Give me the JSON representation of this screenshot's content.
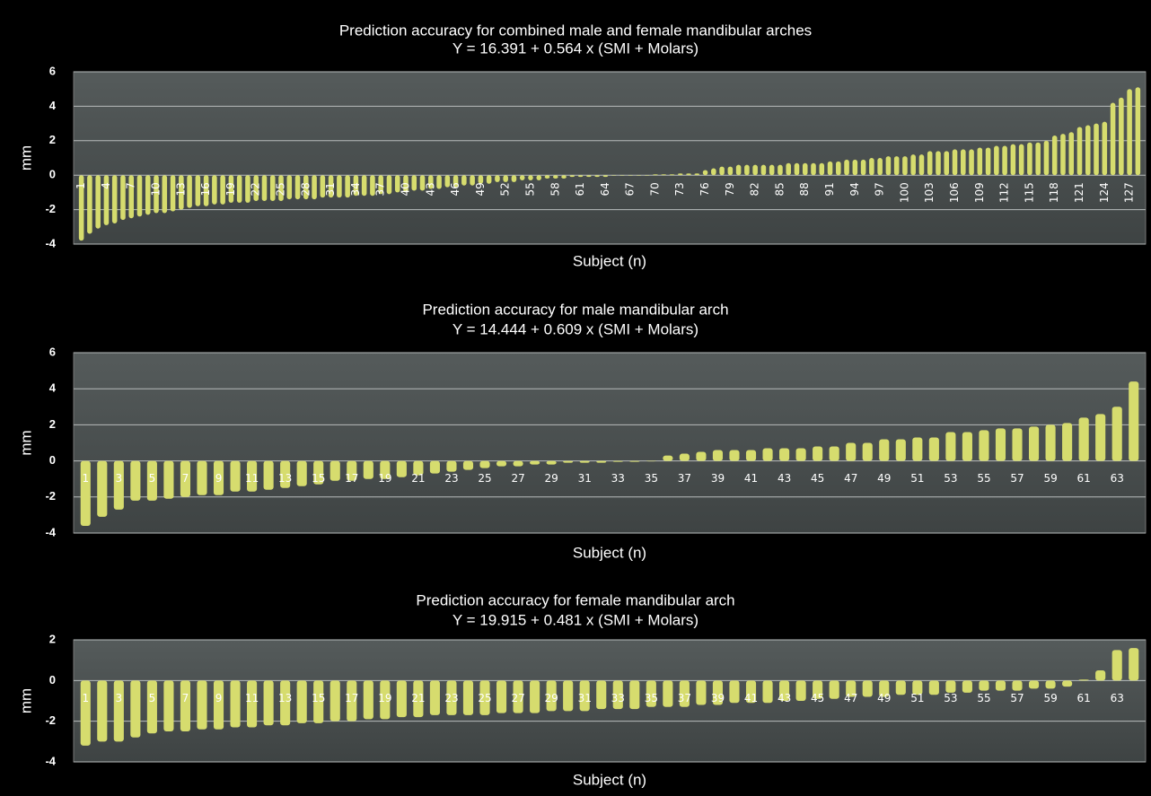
{
  "chart_data": [
    {
      "type": "bar",
      "title": "Prediction accuracy for combined male and female mandibular arches",
      "subtitle": "Y = 16.391 + 0.564 x (SMI + Molars)",
      "x_label": "Subject (n)",
      "y_label": "mm",
      "label_rotation": "vertical",
      "categories": [
        "1",
        null,
        null,
        "4",
        null,
        null,
        "7",
        null,
        null,
        "10",
        null,
        null,
        "13",
        null,
        null,
        "16",
        null,
        null,
        "19",
        null,
        null,
        "22",
        null,
        null,
        "25",
        null,
        null,
        "28",
        null,
        null,
        "31",
        null,
        null,
        "34",
        null,
        null,
        "37",
        null,
        null,
        "40",
        null,
        null,
        "43",
        null,
        null,
        "46",
        null,
        null,
        "49",
        null,
        null,
        "52",
        null,
        null,
        "55",
        null,
        null,
        "58",
        null,
        null,
        "61",
        null,
        null,
        "64",
        null,
        null,
        "67",
        null,
        null,
        "70",
        null,
        null,
        "73",
        null,
        null,
        "76",
        null,
        null,
        "79",
        null,
        null,
        "82",
        null,
        null,
        "85",
        null,
        null,
        "88",
        null,
        null,
        "91",
        null,
        null,
        "94",
        null,
        null,
        "97",
        null,
        null,
        "100",
        null,
        null,
        "103",
        null,
        null,
        "106",
        null,
        null,
        "109",
        null,
        null,
        "112",
        null,
        null,
        "115",
        null,
        null,
        "118",
        null,
        null,
        "121",
        null,
        null,
        "124",
        null,
        null,
        "127",
        null
      ],
      "values": [
        -3.8,
        -3.4,
        -3.1,
        -2.9,
        -2.8,
        -2.6,
        -2.5,
        -2.4,
        -2.3,
        -2.2,
        -2.2,
        -2.1,
        -2.0,
        -1.9,
        -1.8,
        -1.8,
        -1.7,
        -1.7,
        -1.6,
        -1.6,
        -1.6,
        -1.5,
        -1.5,
        -1.5,
        -1.5,
        -1.4,
        -1.4,
        -1.4,
        -1.4,
        -1.3,
        -1.3,
        -1.3,
        -1.3,
        -1.2,
        -1.2,
        -1.2,
        -1.1,
        -1.1,
        -1.0,
        -1.0,
        -0.9,
        -0.9,
        -0.8,
        -0.8,
        -0.7,
        -0.7,
        -0.6,
        -0.6,
        -0.5,
        -0.5,
        -0.4,
        -0.4,
        -0.4,
        -0.3,
        -0.3,
        -0.3,
        -0.2,
        -0.2,
        -0.2,
        -0.1,
        -0.1,
        -0.1,
        -0.1,
        -0.1,
        0,
        0,
        0,
        0,
        0,
        0.05,
        0.05,
        0.05,
        0.1,
        0.1,
        0.1,
        0.3,
        0.4,
        0.5,
        0.5,
        0.6,
        0.6,
        0.6,
        0.6,
        0.6,
        0.6,
        0.7,
        0.7,
        0.7,
        0.7,
        0.7,
        0.8,
        0.8,
        0.9,
        0.9,
        0.9,
        1.0,
        1.0,
        1.1,
        1.1,
        1.1,
        1.2,
        1.2,
        1.4,
        1.4,
        1.4,
        1.5,
        1.5,
        1.5,
        1.6,
        1.6,
        1.7,
        1.7,
        1.8,
        1.8,
        1.9,
        1.9,
        2.0,
        2.3,
        2.4,
        2.5,
        2.8,
        2.9,
        3.0,
        3.1,
        4.2,
        4.5,
        5.0,
        5.1
      ],
      "color": "#d6dc6e",
      "ylim": [
        -4,
        6
      ],
      "yticks": [
        -4,
        -2,
        0,
        2,
        4,
        6
      ],
      "grid": true
    },
    {
      "type": "bar",
      "title": "Prediction accuracy for male mandibular arch",
      "subtitle": "Y = 14.444 + 0.609 x (SMI + Molars)",
      "x_label": "Subject (n)",
      "y_label": "mm",
      "label_rotation": "horizontal",
      "categories": [
        "1",
        null,
        "3",
        null,
        "5",
        null,
        "7",
        null,
        "9",
        null,
        "11",
        null,
        "13",
        null,
        "15",
        null,
        "17",
        null,
        "19",
        null,
        "21",
        null,
        "23",
        null,
        "25",
        null,
        "27",
        null,
        "29",
        null,
        "31",
        null,
        "33",
        null,
        "35",
        null,
        "37",
        null,
        "39",
        null,
        "41",
        null,
        "43",
        null,
        "45",
        null,
        "47",
        null,
        "49",
        null,
        "51",
        null,
        "53",
        null,
        "55",
        null,
        "57",
        null,
        "59",
        null,
        "61",
        null,
        "63",
        null
      ],
      "values": [
        -3.6,
        -3.1,
        -2.7,
        -2.2,
        -2.2,
        -2.1,
        -2.0,
        -1.9,
        -1.9,
        -1.7,
        -1.7,
        -1.6,
        -1.5,
        -1.4,
        -1.3,
        -1.1,
        -1.1,
        -1.0,
        -1.0,
        -0.9,
        -0.8,
        -0.7,
        -0.6,
        -0.5,
        -0.4,
        -0.3,
        -0.3,
        -0.2,
        -0.2,
        -0.1,
        -0.1,
        -0.1,
        -0.05,
        -0.05,
        0,
        0.3,
        0.4,
        0.5,
        0.6,
        0.6,
        0.6,
        0.7,
        0.7,
        0.7,
        0.8,
        0.8,
        1.0,
        1.0,
        1.2,
        1.2,
        1.3,
        1.3,
        1.6,
        1.6,
        1.7,
        1.8,
        1.8,
        1.9,
        2.0,
        2.1,
        2.4,
        2.6,
        3.0,
        4.4
      ],
      "color": "#d6dc6e",
      "ylim": [
        -4,
        6
      ],
      "yticks": [
        -4,
        -2,
        0,
        2,
        4,
        6
      ],
      "grid": true
    },
    {
      "type": "bar",
      "title": "Prediction accuracy for female mandibular arch",
      "subtitle": "Y = 19.915 + 0.481 x (SMI + Molars)",
      "x_label": "Subject (n)",
      "y_label": "mm",
      "label_rotation": "horizontal",
      "categories": [
        "1",
        null,
        "3",
        null,
        "5",
        null,
        "7",
        null,
        "9",
        null,
        "11",
        null,
        "13",
        null,
        "15",
        null,
        "17",
        null,
        "19",
        null,
        "21",
        null,
        "23",
        null,
        "25",
        null,
        "27",
        null,
        "29",
        null,
        "31",
        null,
        "33",
        null,
        "35",
        null,
        "37",
        null,
        "39",
        null,
        "41",
        null,
        "43",
        null,
        "45",
        null,
        "47",
        null,
        "49",
        null,
        "51",
        null,
        "53",
        null,
        "55",
        null,
        "57",
        null,
        "59",
        null,
        "61",
        null,
        "63",
        null
      ],
      "values": [
        -3.2,
        -3.0,
        -3.0,
        -2.8,
        -2.6,
        -2.5,
        -2.5,
        -2.4,
        -2.4,
        -2.3,
        -2.3,
        -2.2,
        -2.2,
        -2.1,
        -2.1,
        -2.0,
        -2.0,
        -1.9,
        -1.9,
        -1.8,
        -1.8,
        -1.7,
        -1.7,
        -1.7,
        -1.7,
        -1.6,
        -1.6,
        -1.6,
        -1.5,
        -1.5,
        -1.5,
        -1.4,
        -1.4,
        -1.4,
        -1.3,
        -1.3,
        -1.3,
        -1.2,
        -1.2,
        -1.1,
        -1.1,
        -1.1,
        -1.0,
        -1.0,
        -0.9,
        -0.9,
        -0.8,
        -0.8,
        -0.8,
        -0.7,
        -0.7,
        -0.7,
        -0.6,
        -0.6,
        -0.5,
        -0.5,
        -0.5,
        -0.4,
        -0.4,
        -0.3,
        0.05,
        0.5,
        1.5,
        1.6
      ],
      "color": "#d6dc6e",
      "ylim": [
        -4,
        2
      ],
      "yticks": [
        -4,
        -2,
        0,
        2
      ],
      "grid": true
    }
  ]
}
